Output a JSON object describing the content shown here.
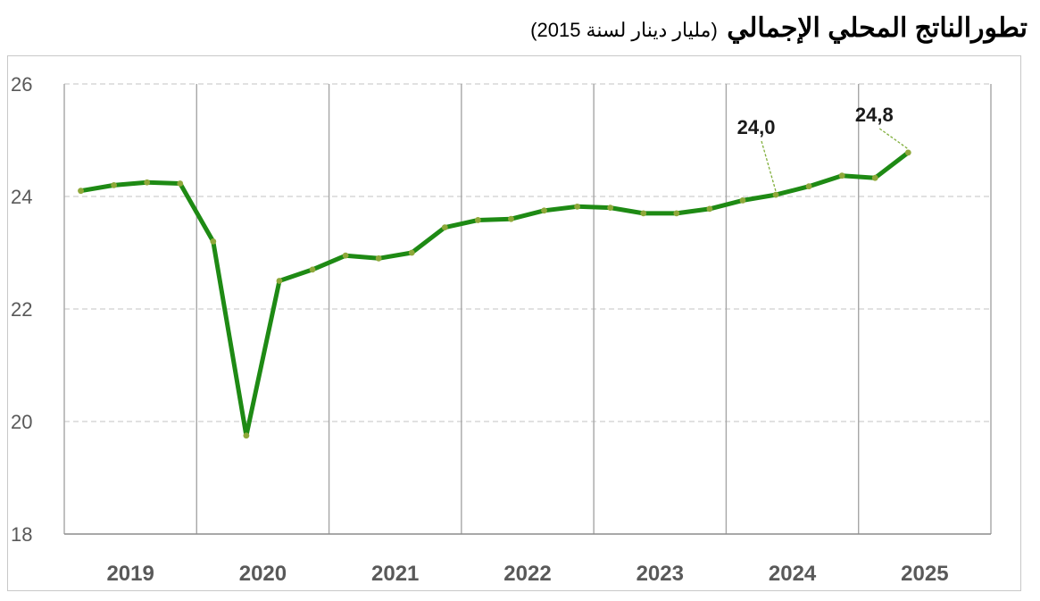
{
  "title": {
    "main": "تطورالناتج المحلي الإجمالي",
    "sub": "(مليار دينار لسنة 2015)"
  },
  "chart_data": {
    "type": "line",
    "title": "تطورالناتج المحلي الإجمالي (مليار دينار لسنة 2015)",
    "xlabel": "",
    "ylabel": "",
    "ylim": [
      18,
      26
    ],
    "yticks": [
      "18",
      "20",
      "22",
      "24",
      "26"
    ],
    "year_labels": [
      "2019",
      "2020",
      "2021",
      "2022",
      "2023",
      "2024",
      "2025"
    ],
    "x": [
      "2019Q1",
      "2019Q2",
      "2019Q3",
      "2019Q4",
      "2020Q1",
      "2020Q2",
      "2020Q3",
      "2020Q4",
      "2021Q1",
      "2021Q2",
      "2021Q3",
      "2021Q4",
      "2022Q1",
      "2022Q2",
      "2022Q3",
      "2022Q4",
      "2023Q1",
      "2023Q2",
      "2023Q3",
      "2023Q4",
      "2024Q1",
      "2024Q2",
      "2024Q3",
      "2024Q4",
      "2025Q1",
      "2025Q2"
    ],
    "series": [
      {
        "values": [
          24.1,
          24.2,
          24.25,
          24.23,
          23.2,
          19.75,
          22.5,
          22.7,
          22.95,
          22.9,
          23.0,
          23.45,
          23.58,
          23.6,
          23.75,
          23.82,
          23.8,
          23.7,
          23.7,
          23.78,
          23.93,
          24.03,
          24.18,
          24.37,
          24.33,
          24.78
        ],
        "color": "#1e8a14",
        "marker_color": "#8fa83a"
      }
    ],
    "annotations": [
      {
        "text": "24,0",
        "x": "2024Q2"
      },
      {
        "text": "24,8",
        "x": "2025Q2"
      }
    ],
    "grid": true,
    "grid_style": "horizontal dashed, vertical solid at year boundaries"
  }
}
